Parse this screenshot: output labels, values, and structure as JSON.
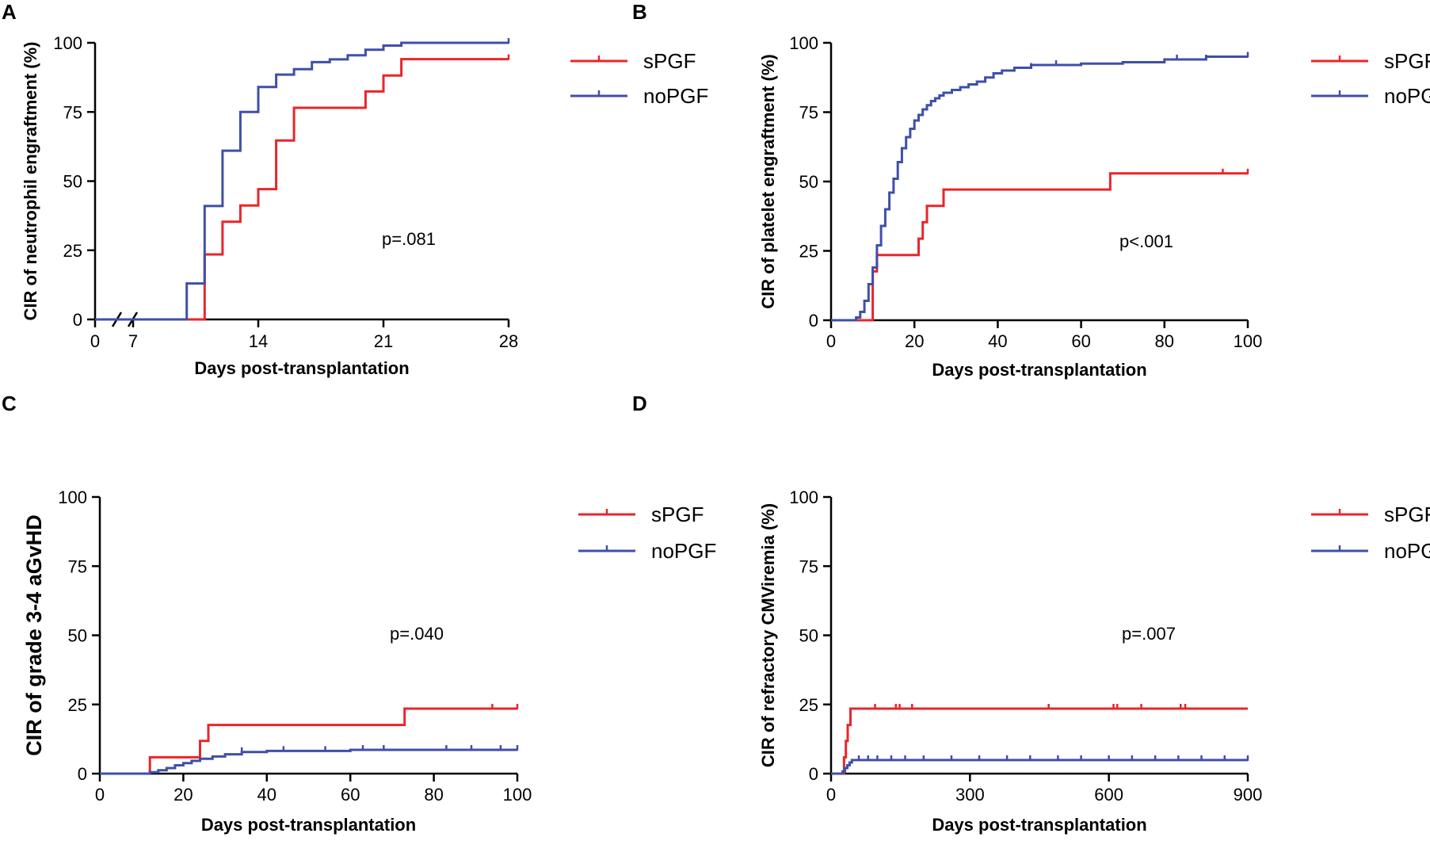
{
  "colors": {
    "sPGF": "#e8262a",
    "noPGF": "#3f4fa8",
    "axis": "#000000"
  },
  "chart_data": [
    {
      "panel": "A",
      "type": "line",
      "step": true,
      "xlabel": "Days post-transplantation",
      "ylabel": "CIR of neutrophil engraftment (%)",
      "xlim": [
        0,
        28
      ],
      "ylim": [
        0,
        100
      ],
      "axis_break": "between 0 and 7",
      "xticks": [
        0,
        7,
        14,
        21,
        28
      ],
      "xtick_labels": [
        "0",
        "7",
        "14",
        "21",
        "28"
      ],
      "yticks": [
        0,
        25,
        50,
        75,
        100
      ],
      "ytick_labels": [
        "0",
        "25",
        "50",
        "75",
        "100"
      ],
      "pvalue": "p=.081",
      "series": [
        {
          "name": "sPGF",
          "x": [
            0,
            11,
            11,
            12,
            12,
            13,
            13,
            14,
            14,
            15,
            15,
            16,
            16,
            20,
            20,
            21,
            21,
            22,
            22,
            28
          ],
          "y": [
            0,
            0,
            23.5,
            23.5,
            35.3,
            35.3,
            41.2,
            41.2,
            47.1,
            47.1,
            64.7,
            64.7,
            76.5,
            76.5,
            82.4,
            82.4,
            88.2,
            88.2,
            94.1,
            94.1
          ],
          "censored": [
            {
              "x": 28,
              "y": 94.1
            }
          ]
        },
        {
          "name": "noPGF",
          "x": [
            0,
            10,
            10,
            11,
            11,
            12,
            12,
            13,
            13,
            14,
            14,
            15,
            15,
            16,
            16,
            17,
            17,
            18,
            18,
            19,
            19,
            20,
            20,
            21,
            21,
            22,
            22,
            28
          ],
          "y": [
            0,
            0,
            13,
            13,
            41,
            41,
            61,
            61,
            75,
            75,
            84,
            84,
            88.5,
            88.5,
            90.5,
            90.5,
            93,
            93,
            94,
            94,
            95.5,
            95.5,
            97.5,
            97.5,
            99,
            99,
            100,
            100
          ],
          "censored": [
            {
              "x": 28,
              "y": 100
            }
          ]
        }
      ]
    },
    {
      "panel": "B",
      "type": "line",
      "step": true,
      "xlabel": "Days post-transplantation",
      "ylabel": "CIR of platelet engraftment (%)",
      "xlim": [
        0,
        100
      ],
      "ylim": [
        0,
        100
      ],
      "xticks": [
        0,
        20,
        40,
        60,
        80,
        100
      ],
      "xtick_labels": [
        "0",
        "20",
        "40",
        "60",
        "80",
        "100"
      ],
      "yticks": [
        0,
        25,
        50,
        75,
        100
      ],
      "ytick_labels": [
        "0",
        "25",
        "50",
        "75",
        "100"
      ],
      "pvalue": "p<.001",
      "series": [
        {
          "name": "sPGF",
          "x": [
            0,
            10,
            10,
            11,
            11,
            21,
            21,
            22,
            22,
            23,
            23,
            27,
            27,
            67,
            67,
            100
          ],
          "y": [
            0,
            0,
            17.6,
            17.6,
            23.5,
            23.5,
            29.4,
            29.4,
            35.3,
            35.3,
            41.2,
            41.2,
            47.1,
            47.1,
            52.9,
            52.9
          ],
          "censored": [
            {
              "x": 94,
              "y": 52.9
            },
            {
              "x": 100,
              "y": 52.9
            }
          ]
        },
        {
          "name": "noPGF",
          "x": [
            0,
            6,
            6,
            7,
            7,
            8,
            8,
            9,
            9,
            10,
            10,
            11,
            11,
            12,
            12,
            13,
            13,
            14,
            14,
            15,
            15,
            16,
            16,
            17,
            17,
            18,
            18,
            19,
            19,
            20,
            20,
            21,
            21,
            22,
            22,
            23,
            23,
            24,
            24,
            25,
            25,
            26,
            26,
            27,
            27,
            29,
            29,
            31,
            31,
            33,
            33,
            35,
            35,
            37,
            37,
            39,
            39,
            41,
            41,
            44,
            44,
            48,
            48,
            60,
            60,
            70,
            70,
            80,
            80,
            90,
            90,
            100
          ],
          "y": [
            0,
            0,
            1,
            1,
            3,
            3,
            7,
            7,
            13,
            13,
            19,
            19,
            27,
            27,
            34,
            34,
            40,
            40,
            46,
            46,
            51,
            51,
            57,
            57,
            62,
            62,
            66,
            66,
            69,
            69,
            72,
            72,
            74,
            74,
            76,
            76,
            77.5,
            77.5,
            79,
            79,
            80,
            80,
            81,
            81,
            82,
            82,
            83,
            83,
            84,
            84,
            85,
            85,
            86,
            86,
            87.5,
            87.5,
            89,
            89,
            90,
            90,
            91,
            91,
            92,
            92,
            92.5,
            92.5,
            93,
            93,
            94,
            94,
            95,
            95
          ],
          "censored": [
            {
              "x": 37,
              "y": 86
            },
            {
              "x": 48,
              "y": 91
            },
            {
              "x": 54,
              "y": 92
            },
            {
              "x": 83,
              "y": 94
            },
            {
              "x": 90,
              "y": 94
            },
            {
              "x": 100,
              "y": 95
            }
          ]
        }
      ]
    },
    {
      "panel": "C",
      "type": "line",
      "step": true,
      "xlabel": "Days post-transplantation",
      "ylabel": "CIR of grade 3-4 aGvHD",
      "xlim": [
        0,
        100
      ],
      "ylim": [
        0,
        100
      ],
      "xticks": [
        0,
        20,
        40,
        60,
        80,
        100
      ],
      "xtick_labels": [
        "0",
        "20",
        "40",
        "60",
        "80",
        "100"
      ],
      "yticks": [
        0,
        25,
        50,
        75,
        100
      ],
      "ytick_labels": [
        "0",
        "25",
        "50",
        "75",
        "100"
      ],
      "pvalue": "p=.040",
      "series": [
        {
          "name": "sPGF",
          "x": [
            0,
            12,
            12,
            24,
            24,
            26,
            26,
            73,
            73,
            100
          ],
          "y": [
            0,
            0,
            5.9,
            5.9,
            11.8,
            11.8,
            17.6,
            17.6,
            23.5,
            23.5
          ],
          "censored": [
            {
              "x": 94,
              "y": 23.5
            },
            {
              "x": 100,
              "y": 23.5
            }
          ]
        },
        {
          "name": "noPGF",
          "x": [
            0,
            12,
            12,
            14,
            14,
            16,
            16,
            18,
            18,
            20,
            20,
            22,
            22,
            24,
            24,
            27,
            27,
            30,
            30,
            34,
            34,
            40,
            40,
            60,
            60,
            100
          ],
          "y": [
            0,
            0,
            0.5,
            0.5,
            1.2,
            1.2,
            2,
            2,
            3,
            3,
            3.8,
            3.8,
            4.6,
            4.6,
            5.4,
            5.4,
            6.2,
            6.2,
            7,
            7,
            7.8,
            7.8,
            8.2,
            8.2,
            8.6,
            8.6
          ],
          "censored": [
            {
              "x": 34,
              "y": 7.8
            },
            {
              "x": 44,
              "y": 8.2
            },
            {
              "x": 54,
              "y": 8.2
            },
            {
              "x": 63,
              "y": 8.6
            },
            {
              "x": 68,
              "y": 8.6
            },
            {
              "x": 83,
              "y": 8.6
            },
            {
              "x": 89,
              "y": 8.6
            },
            {
              "x": 96,
              "y": 8.6
            },
            {
              "x": 100,
              "y": 8.6
            }
          ]
        }
      ]
    },
    {
      "panel": "D",
      "type": "line",
      "step": true,
      "xlabel": "Days post-transplantation",
      "ylabel": "CIR of refractory CMViremia (%)",
      "xlim": [
        0,
        900
      ],
      "ylim": [
        0,
        100
      ],
      "xticks": [
        0,
        300,
        600,
        900
      ],
      "xtick_labels": [
        "0",
        "300",
        "600",
        "900"
      ],
      "yticks": [
        0,
        25,
        50,
        75,
        100
      ],
      "ytick_labels": [
        "0",
        "25",
        "50",
        "75",
        "100"
      ],
      "pvalue": "p=.007",
      "series": [
        {
          "name": "sPGF",
          "x": [
            0,
            28,
            28,
            32,
            32,
            36,
            36,
            42,
            42,
            900
          ],
          "y": [
            0,
            0,
            5.9,
            5.9,
            11.8,
            11.8,
            17.6,
            17.6,
            23.5,
            23.5
          ],
          "censored": [
            {
              "x": 95,
              "y": 23.5
            },
            {
              "x": 140,
              "y": 23.5
            },
            {
              "x": 148,
              "y": 23.5
            },
            {
              "x": 175,
              "y": 23.5
            },
            {
              "x": 470,
              "y": 23.5
            },
            {
              "x": 610,
              "y": 23.5
            },
            {
              "x": 618,
              "y": 23.5
            },
            {
              "x": 670,
              "y": 23.5
            },
            {
              "x": 755,
              "y": 23.5
            },
            {
              "x": 765,
              "y": 23.5
            }
          ]
        },
        {
          "name": "noPGF",
          "x": [
            0,
            25,
            25,
            30,
            30,
            35,
            35,
            40,
            40,
            45,
            45,
            900
          ],
          "y": [
            0,
            0,
            0.8,
            0.8,
            2,
            2,
            3,
            3,
            4,
            4,
            4.9,
            4.9
          ],
          "censored": [
            {
              "x": 60,
              "y": 4.9
            },
            {
              "x": 80,
              "y": 4.9
            },
            {
              "x": 100,
              "y": 4.9
            },
            {
              "x": 130,
              "y": 4.9
            },
            {
              "x": 160,
              "y": 4.9
            },
            {
              "x": 200,
              "y": 4.9
            },
            {
              "x": 260,
              "y": 4.9
            },
            {
              "x": 320,
              "y": 4.9
            },
            {
              "x": 380,
              "y": 4.9
            },
            {
              "x": 430,
              "y": 4.9
            },
            {
              "x": 490,
              "y": 4.9
            },
            {
              "x": 540,
              "y": 4.9
            },
            {
              "x": 600,
              "y": 4.9
            },
            {
              "x": 650,
              "y": 4.9
            },
            {
              "x": 700,
              "y": 4.9
            },
            {
              "x": 750,
              "y": 4.9
            },
            {
              "x": 800,
              "y": 4.9
            },
            {
              "x": 850,
              "y": 4.9
            },
            {
              "x": 900,
              "y": 4.9
            }
          ]
        }
      ]
    }
  ]
}
